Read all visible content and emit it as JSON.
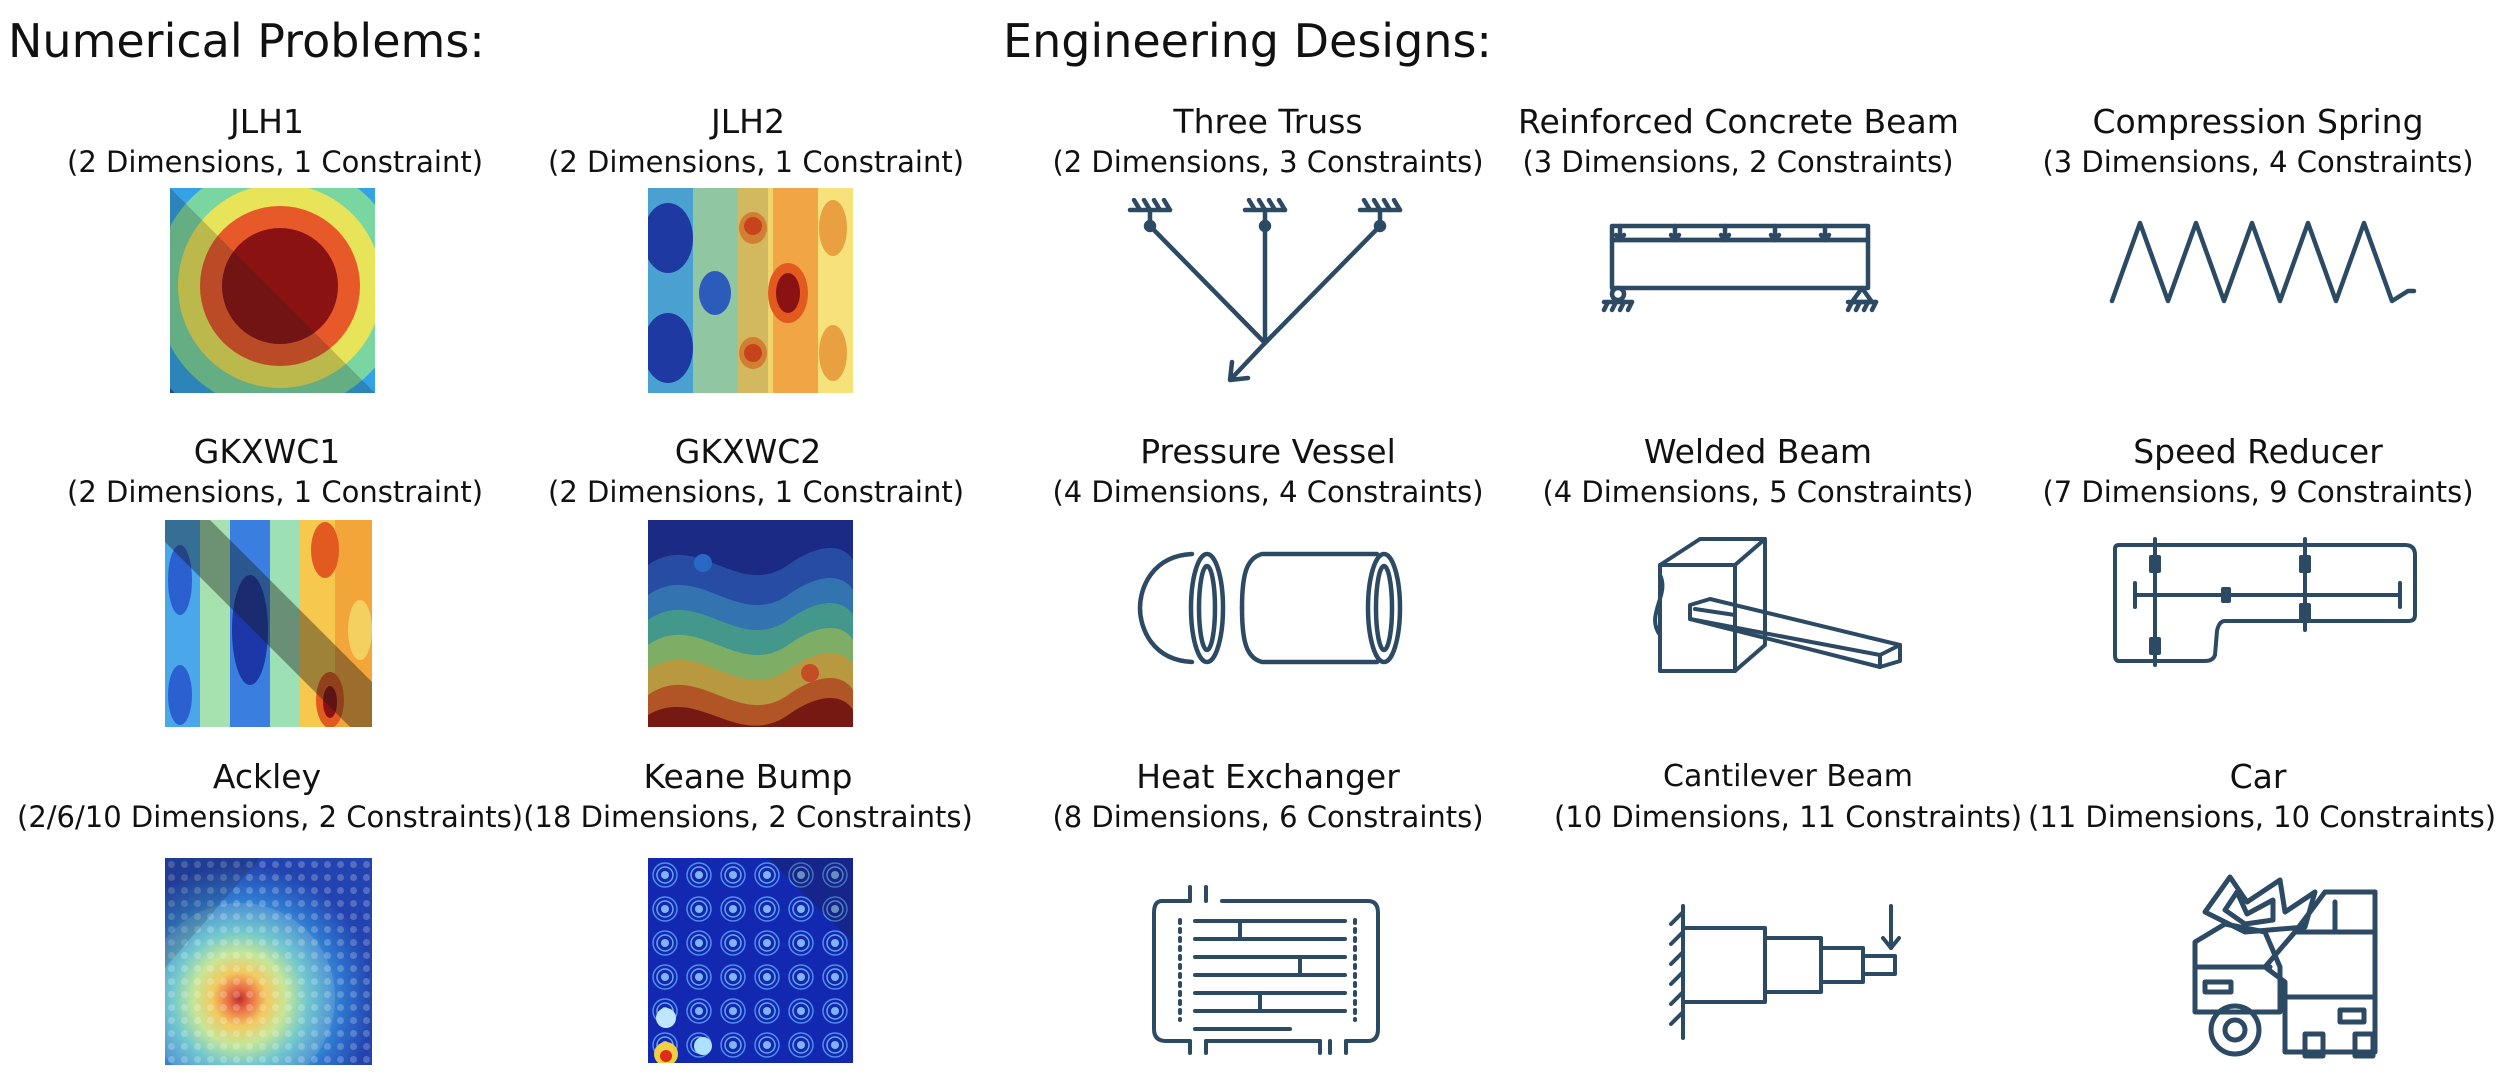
{
  "headers": {
    "numerical": "Numerical Problems:",
    "engineering": "Engineering Designs:"
  },
  "numerical": [
    {
      "name": "JLH1",
      "info": "(2 Dimensions, 1 Constraint)"
    },
    {
      "name": "JLH2",
      "info": "(2 Dimensions, 1 Constraint)"
    },
    {
      "name": "GKXWC1",
      "info": "(2 Dimensions, 1 Constraint)"
    },
    {
      "name": "GKXWC2",
      "info": "(2 Dimensions, 1 Constraint)"
    },
    {
      "name": "Ackley",
      "info": "(2/6/10 Dimensions, 2 Constraints)"
    },
    {
      "name": "Keane Bump",
      "info": "(18 Dimensions, 2 Constraints)"
    }
  ],
  "engineering": [
    {
      "name": "Three Truss",
      "info": "(2 Dimensions, 3 Constraints)",
      "icon": "three-truss-icon"
    },
    {
      "name": "Reinforced Concrete Beam",
      "info": "(3 Dimensions, 2 Constraints)",
      "icon": "concrete-beam-icon"
    },
    {
      "name": "Compression Spring",
      "info": "(3 Dimensions, 4 Constraints)",
      "icon": "spring-icon"
    },
    {
      "name": "Pressure Vessel",
      "info": "(4 Dimensions, 4 Constraints)",
      "icon": "pressure-vessel-icon"
    },
    {
      "name": "Welded Beam",
      "info": "(4 Dimensions, 5 Constraints)",
      "icon": "welded-beam-icon"
    },
    {
      "name": "Speed Reducer",
      "info": "(7 Dimensions, 9 Constraints)",
      "icon": "speed-reducer-icon"
    },
    {
      "name": "Heat Exchanger",
      "info": "(8 Dimensions, 6 Constraints)",
      "icon": "heat-exchanger-icon"
    },
    {
      "name": "Cantilever Beam",
      "info": "(10 Dimensions, 11 Constraints)",
      "icon": "cantilever-beam-icon"
    },
    {
      "name": "Car",
      "info": "(11 Dimensions, 10 Constraints)",
      "icon": "car-crash-icon"
    }
  ],
  "colors": {
    "icon_stroke": "#2c4a63",
    "text": "#111111"
  }
}
